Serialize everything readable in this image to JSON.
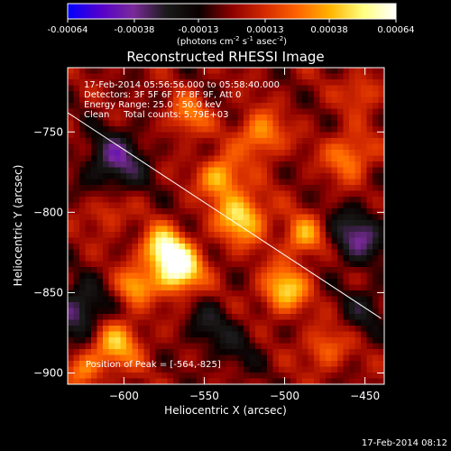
{
  "chart_data": {
    "type": "heatmap",
    "title": "Reconstructed RHESSI Image",
    "xlabel": "Heliocentric X (arcsec)",
    "ylabel": "Heliocentric Y (arcsec)",
    "xlim": [
      -635,
      -438
    ],
    "ylim": [
      -907,
      -710
    ],
    "x_ticks": [
      -600,
      -550,
      -500,
      -450
    ],
    "y_ticks": [
      -900,
      -850,
      -800,
      -750
    ],
    "colorbar": {
      "min": -0.00064,
      "max": 0.00064,
      "ticks": [
        "-0.00064",
        "-0.00038",
        "-0.00013",
        "0.00013",
        "0.00038",
        "0.00064"
      ],
      "unit_label": "(photons cm",
      "unit_parts": [
        "(photons cm",
        "-2",
        " s",
        "-1",
        " asec",
        "-2",
        ")"
      ]
    },
    "annotations": [
      "17-Feb-2014 05:56:56.000 to 05:58:40.000",
      "Detectors: 3F 5F 6F 7F 8F 9F, Att 0",
      "Energy Range: 25.0 - 50.0 keV",
      "Clean     Total counts: 5.79E+03"
    ],
    "peak_label": "Position of Peak = [-564,-825]",
    "peak": {
      "x": -564,
      "y": -825
    },
    "limb_line": [
      [
        -635,
        -738
      ],
      [
        -440,
        -866
      ]
    ],
    "sources": [
      {
        "x": -566,
        "y": -836,
        "amp": 1.0,
        "sigma": 10
      },
      {
        "x": -576,
        "y": -822,
        "amp": 0.8,
        "sigma": 9
      },
      {
        "x": -593,
        "y": -846,
        "amp": 0.55,
        "sigma": 8
      },
      {
        "x": -527,
        "y": -803,
        "amp": 0.75,
        "sigma": 11
      },
      {
        "x": -540,
        "y": -778,
        "amp": 0.65,
        "sigma": 9
      },
      {
        "x": -500,
        "y": -848,
        "amp": 0.7,
        "sigma": 10
      },
      {
        "x": -488,
        "y": -815,
        "amp": 0.55,
        "sigma": 9
      },
      {
        "x": -515,
        "y": -752,
        "amp": 0.55,
        "sigma": 10
      },
      {
        "x": -560,
        "y": -740,
        "amp": 0.45,
        "sigma": 9
      },
      {
        "x": -460,
        "y": -765,
        "amp": 0.5,
        "sigma": 10
      },
      {
        "x": -452,
        "y": -725,
        "amp": 0.35,
        "sigma": 8
      },
      {
        "x": -605,
        "y": -882,
        "amp": 0.6,
        "sigma": 11
      },
      {
        "x": -625,
        "y": -898,
        "amp": 0.4,
        "sigma": 8
      },
      {
        "x": -475,
        "y": -885,
        "amp": 0.4,
        "sigma": 9
      },
      {
        "x": -610,
        "y": -800,
        "amp": 0.3,
        "sigma": 8
      },
      {
        "x": -628,
        "y": -862,
        "amp": -0.55,
        "sigma": 12
      },
      {
        "x": -605,
        "y": -768,
        "amp": -0.55,
        "sigma": 13
      },
      {
        "x": -455,
        "y": -815,
        "amp": -0.55,
        "sigma": 12
      },
      {
        "x": -548,
        "y": -870,
        "amp": -0.3,
        "sigma": 10
      },
      {
        "x": -450,
        "y": -860,
        "amp": -0.3,
        "sigma": 10
      },
      {
        "x": -530,
        "y": -885,
        "amp": -0.2,
        "sigma": 12
      }
    ],
    "grid": false,
    "colormap": [
      "#0000ff",
      "#5500cc",
      "#7a2a9a",
      "#1a1a1a",
      "#0a0000",
      "#8c0000",
      "#d42a00",
      "#ff6400",
      "#ffb400",
      "#ffff80",
      "#ffffff"
    ]
  },
  "footer": {
    "timestamp": "17-Feb-2014 08:12"
  }
}
